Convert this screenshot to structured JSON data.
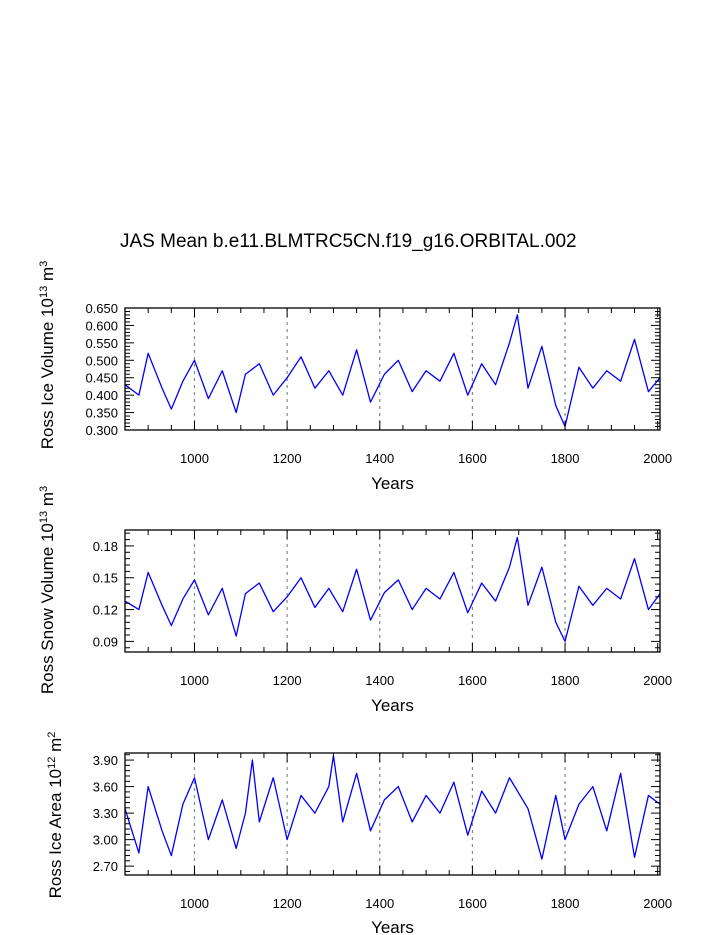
{
  "title": "JAS Mean b.e11.BLMTRC5CN.f19_g16.ORBITAL.002",
  "colors": {
    "series": "#0000ff",
    "grid": "#888888",
    "axis": "#000000"
  },
  "chart_data": [
    {
      "type": "line",
      "name": "ross-ice-volume",
      "title": "",
      "xlabel": "Years",
      "ylabel": {
        "text": "Ross Ice Volume 10",
        "exp1": "13",
        "unit": " m",
        "exp2": "3"
      },
      "xlim": [
        850,
        2005
      ],
      "ylim": [
        0.3,
        0.65
      ],
      "xticks": [
        1000,
        1200,
        1400,
        1600,
        1800,
        2000
      ],
      "xtick_labels": [
        "1000",
        "1200",
        "1400",
        "1600",
        "1800",
        "2000"
      ],
      "yticks": [
        0.3,
        0.35,
        0.4,
        0.45,
        0.5,
        0.55,
        0.6,
        0.65
      ],
      "ytick_labels": [
        "0.300",
        "0.350",
        "0.400",
        "0.450",
        "0.500",
        "0.550",
        "0.600",
        "0.650"
      ],
      "vertical_gridlines": [
        1000,
        1200,
        1400,
        1600,
        1800
      ],
      "series": [
        {
          "name": "Ross Ice Volume",
          "x": [
            850,
            880,
            900,
            930,
            950,
            975,
            1000,
            1030,
            1060,
            1090,
            1110,
            1140,
            1170,
            1200,
            1230,
            1260,
            1290,
            1320,
            1350,
            1380,
            1410,
            1440,
            1470,
            1500,
            1530,
            1560,
            1590,
            1620,
            1650,
            1680,
            1697,
            1720,
            1750,
            1780,
            1800,
            1830,
            1860,
            1890,
            1920,
            1950,
            1980,
            2005
          ],
          "values": [
            0.43,
            0.4,
            0.52,
            0.42,
            0.36,
            0.44,
            0.5,
            0.39,
            0.47,
            0.35,
            0.46,
            0.49,
            0.4,
            0.45,
            0.51,
            0.42,
            0.47,
            0.4,
            0.53,
            0.38,
            0.46,
            0.5,
            0.41,
            0.47,
            0.44,
            0.52,
            0.4,
            0.49,
            0.43,
            0.55,
            0.63,
            0.42,
            0.54,
            0.37,
            0.31,
            0.48,
            0.42,
            0.47,
            0.44,
            0.56,
            0.41,
            0.45
          ]
        }
      ]
    },
    {
      "type": "line",
      "name": "ross-snow-volume",
      "title": "",
      "xlabel": "Years",
      "ylabel": {
        "text": "Ross Snow Volume 10",
        "exp1": "13",
        "unit": " m",
        "exp2": "3"
      },
      "xlim": [
        850,
        2005
      ],
      "ylim": [
        0.08,
        0.195
      ],
      "xticks": [
        1000,
        1200,
        1400,
        1600,
        1800,
        2000
      ],
      "xtick_labels": [
        "1000",
        "1200",
        "1400",
        "1600",
        "1800",
        "2000"
      ],
      "yticks": [
        0.09,
        0.12,
        0.15,
        0.18
      ],
      "ytick_labels": [
        "0.09",
        "0.12",
        "0.15",
        "0.18"
      ],
      "vertical_gridlines": [
        1000,
        1200,
        1400,
        1600,
        1800
      ],
      "series": [
        {
          "name": "Ross Snow Volume",
          "x": [
            850,
            880,
            900,
            930,
            950,
            975,
            1000,
            1030,
            1060,
            1090,
            1110,
            1140,
            1170,
            1200,
            1230,
            1260,
            1290,
            1320,
            1350,
            1380,
            1410,
            1440,
            1470,
            1500,
            1530,
            1560,
            1590,
            1620,
            1650,
            1680,
            1697,
            1720,
            1750,
            1780,
            1800,
            1830,
            1860,
            1890,
            1920,
            1950,
            1980,
            2005
          ],
          "values": [
            0.128,
            0.12,
            0.155,
            0.124,
            0.105,
            0.13,
            0.148,
            0.115,
            0.14,
            0.095,
            0.135,
            0.145,
            0.118,
            0.132,
            0.15,
            0.122,
            0.14,
            0.118,
            0.158,
            0.11,
            0.136,
            0.148,
            0.12,
            0.14,
            0.13,
            0.155,
            0.117,
            0.145,
            0.128,
            0.16,
            0.188,
            0.124,
            0.16,
            0.108,
            0.09,
            0.142,
            0.124,
            0.14,
            0.13,
            0.168,
            0.12,
            0.135
          ]
        }
      ]
    },
    {
      "type": "line",
      "name": "ross-ice-area",
      "title": "",
      "xlabel": "Years",
      "ylabel": {
        "text": "Ross Ice Area 10",
        "exp1": "12",
        "unit": " m",
        "exp2": "2"
      },
      "xlim": [
        850,
        2005
      ],
      "ylim": [
        2.6,
        3.98
      ],
      "xticks": [
        1000,
        1200,
        1400,
        1600,
        1800,
        2000
      ],
      "xtick_labels": [
        "1000",
        "1200",
        "1400",
        "1600",
        "1800",
        "2000"
      ],
      "yticks": [
        2.7,
        3.0,
        3.3,
        3.6,
        3.9
      ],
      "ytick_labels": [
        "2.70",
        "3.00",
        "3.30",
        "3.60",
        "3.90"
      ],
      "vertical_gridlines": [
        1000,
        1200,
        1400,
        1600,
        1800
      ],
      "series": [
        {
          "name": "Ross Ice Area",
          "x": [
            850,
            880,
            900,
            930,
            950,
            975,
            1000,
            1030,
            1060,
            1090,
            1110,
            1125,
            1140,
            1170,
            1200,
            1230,
            1260,
            1290,
            1300,
            1320,
            1350,
            1380,
            1410,
            1440,
            1470,
            1500,
            1530,
            1560,
            1590,
            1620,
            1650,
            1680,
            1720,
            1750,
            1780,
            1800,
            1830,
            1860,
            1890,
            1920,
            1950,
            1980,
            2005
          ],
          "values": [
            3.35,
            2.85,
            3.6,
            3.1,
            2.82,
            3.4,
            3.7,
            3.0,
            3.45,
            2.9,
            3.3,
            3.9,
            3.2,
            3.7,
            3.0,
            3.5,
            3.3,
            3.6,
            3.95,
            3.2,
            3.75,
            3.1,
            3.45,
            3.6,
            3.2,
            3.5,
            3.3,
            3.65,
            3.05,
            3.55,
            3.3,
            3.7,
            3.35,
            2.78,
            3.5,
            3.0,
            3.4,
            3.6,
            3.1,
            3.75,
            2.8,
            3.5,
            3.4
          ]
        }
      ]
    }
  ]
}
